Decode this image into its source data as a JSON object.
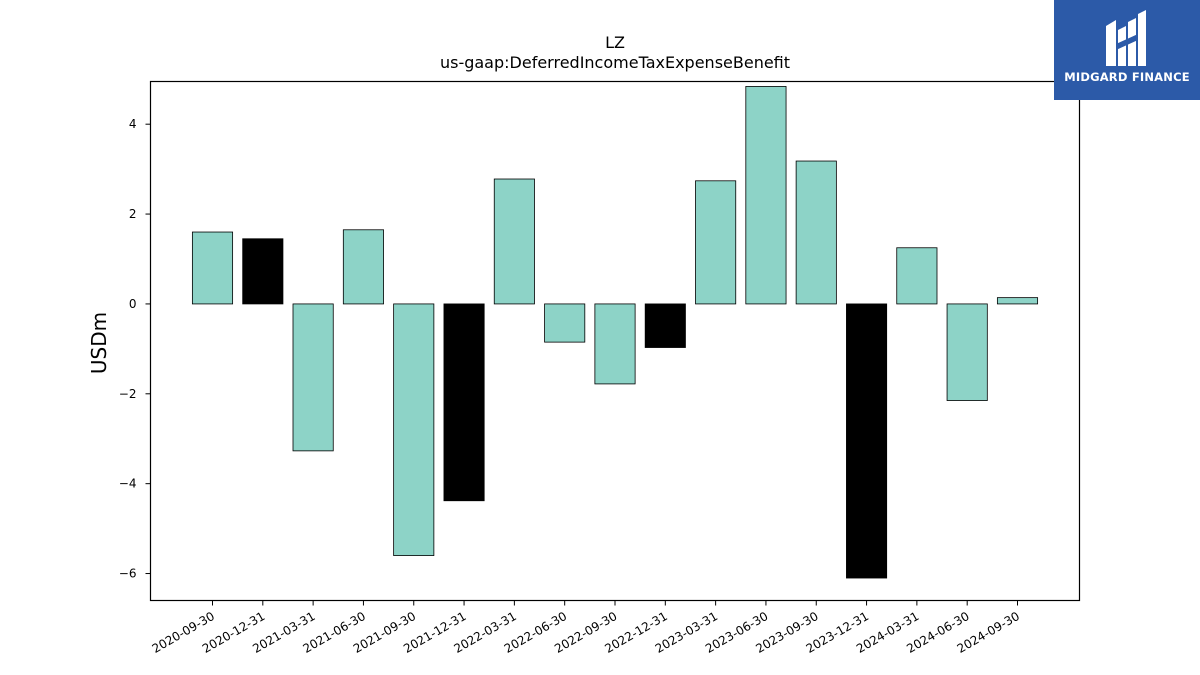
{
  "chart_data": {
    "type": "bar",
    "title": "LZ",
    "subtitle": "us-gaap:DeferredIncomeTaxExpenseBenefit",
    "xlabel": "",
    "ylabel": "USDm",
    "ylim": [
      -6.6,
      4.95
    ],
    "yticks": [
      -6,
      -4,
      -2,
      0,
      2,
      4
    ],
    "grid": false,
    "categories": [
      "2020-09-30",
      "2020-12-31",
      "2021-03-31",
      "2021-06-30",
      "2021-09-30",
      "2021-12-31",
      "2022-03-31",
      "2022-06-30",
      "2022-09-30",
      "2022-12-31",
      "2023-03-31",
      "2023-06-30",
      "2023-09-30",
      "2023-12-31",
      "2024-03-31",
      "2024-06-30",
      "2024-09-30"
    ],
    "values": [
      1.6,
      1.45,
      -3.27,
      1.65,
      -5.6,
      -4.38,
      2.78,
      -0.85,
      -1.78,
      -0.97,
      2.74,
      4.84,
      3.18,
      -6.1,
      1.25,
      -2.15,
      0.14
    ],
    "colors": [
      "#8dd3c7",
      "#000000",
      "#8dd3c7",
      "#8dd3c7",
      "#8dd3c7",
      "#000000",
      "#8dd3c7",
      "#8dd3c7",
      "#8dd3c7",
      "#000000",
      "#8dd3c7",
      "#8dd3c7",
      "#8dd3c7",
      "#000000",
      "#8dd3c7",
      "#8dd3c7",
      "#8dd3c7"
    ]
  },
  "logo": {
    "text": "MIDGARD FINANCE",
    "color": "#2c5aa8"
  }
}
